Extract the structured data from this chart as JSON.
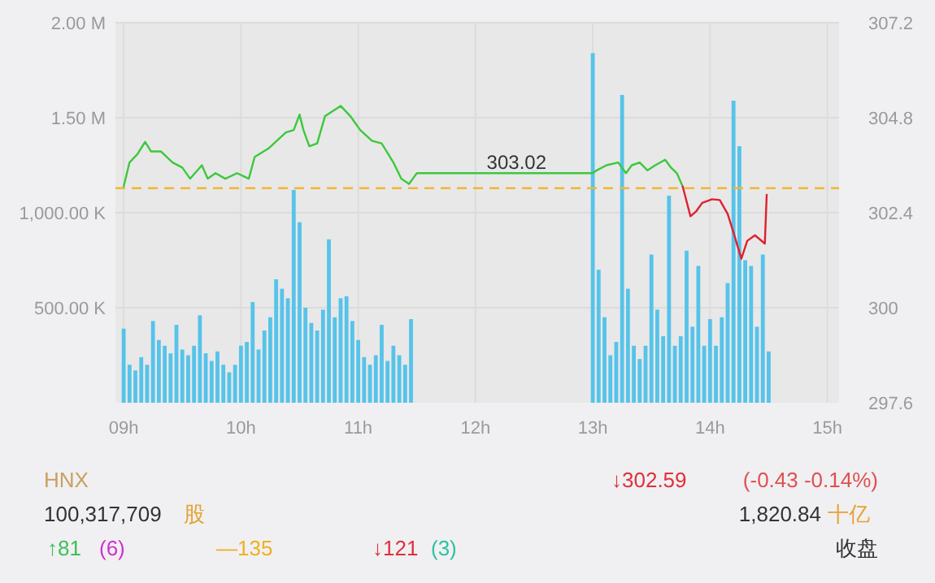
{
  "chart_data": [
    {
      "type": "bar",
      "xlim": [
        8.93,
        15.1
      ],
      "xticks": [
        {
          "value": 9,
          "label": "09h"
        },
        {
          "value": 10,
          "label": "10h"
        },
        {
          "value": 11,
          "label": "11h"
        },
        {
          "value": 12,
          "label": "12h"
        },
        {
          "value": 13,
          "label": "13h"
        },
        {
          "value": 14,
          "label": "14h"
        },
        {
          "value": 15,
          "label": "15h"
        }
      ],
      "ylim": [
        0,
        2000000
      ],
      "yticks": [
        {
          "value": 500000,
          "label": "500.00 K"
        },
        {
          "value": 1000000,
          "label": "1,000.00 K"
        },
        {
          "value": 1500000,
          "label": "1.50 M"
        },
        {
          "value": 2000000,
          "label": "2.00 M"
        }
      ],
      "y2lim": [
        297.6,
        307.2
      ],
      "y2ticks": [
        297.6,
        300,
        302.4,
        304.8,
        307.2
      ],
      "grid": true,
      "ref_lines": [
        {
          "axis": "y2",
          "value": 303.02,
          "label": "303.02",
          "color": "#f2b632",
          "line_style": "dashed"
        }
      ],
      "series": [
        {
          "type": "bar",
          "color": "#56c3ea",
          "x": [
            9,
            9.05,
            9.1,
            9.15,
            9.2,
            9.25,
            9.3,
            9.35,
            9.4,
            9.45,
            9.5,
            9.55,
            9.6,
            9.65,
            9.7,
            9.75,
            9.8,
            9.85,
            9.9,
            9.95,
            10,
            10.05,
            10.1,
            10.15,
            10.2,
            10.25,
            10.3,
            10.35,
            10.4,
            10.45,
            10.5,
            10.55,
            10.6,
            10.65,
            10.7,
            10.75,
            10.8,
            10.85,
            10.9,
            10.95,
            11,
            11.05,
            11.1,
            11.15,
            11.2,
            11.25,
            11.3,
            11.35,
            11.4,
            11.45,
            13,
            13.05,
            13.1,
            13.15,
            13.2,
            13.25,
            13.3,
            13.35,
            13.4,
            13.45,
            13.5,
            13.55,
            13.6,
            13.65,
            13.7,
            13.75,
            13.8,
            13.85,
            13.9,
            13.95,
            14,
            14.05,
            14.1,
            14.15,
            14.2,
            14.25,
            14.3,
            14.35,
            14.4,
            14.45,
            14.5
          ],
          "values": [
            390000,
            200000,
            170000,
            240000,
            200000,
            430000,
            330000,
            300000,
            260000,
            410000,
            280000,
            250000,
            300000,
            460000,
            260000,
            220000,
            270000,
            200000,
            160000,
            200000,
            300000,
            320000,
            530000,
            280000,
            380000,
            450000,
            650000,
            600000,
            550000,
            1120000,
            950000,
            500000,
            420000,
            380000,
            490000,
            860000,
            450000,
            550000,
            560000,
            430000,
            330000,
            240000,
            200000,
            250000,
            410000,
            220000,
            300000,
            250000,
            200000,
            440000,
            1840000,
            700000,
            450000,
            250000,
            320000,
            1620000,
            600000,
            300000,
            230000,
            300000,
            780000,
            490000,
            350000,
            1090000,
            300000,
            350000,
            800000,
            400000,
            720000,
            300000,
            440000,
            300000,
            450000,
            630000,
            1590000,
            1350000,
            750000,
            720000,
            400000,
            780000,
            270000
          ]
        },
        {
          "type": "line",
          "axis": "y2",
          "color": "#3cc83c",
          "x": [
            9,
            9.05,
            9.117,
            9.183,
            9.233,
            9.317,
            9.417,
            9.5,
            9.567,
            9.667,
            9.717,
            9.783,
            9.867,
            9.967,
            10.067,
            10.117,
            10.233,
            10.383,
            10.45,
            10.5,
            10.533,
            10.583,
            10.65,
            10.717,
            10.85,
            10.933,
            11.017,
            11.117,
            11.2,
            11.3,
            11.367,
            11.433,
            11.483,
            11.5,
            13,
            13.033,
            13.117,
            13.217,
            13.283,
            13.333,
            13.4,
            13.467,
            13.533,
            13.617,
            13.667,
            13.717,
            13.767
          ],
          "values": [
            303.06,
            303.67,
            303.88,
            304.19,
            303.95,
            303.95,
            303.67,
            303.54,
            303.26,
            303.6,
            303.26,
            303.4,
            303.26,
            303.4,
            303.26,
            303.81,
            304.02,
            304.43,
            304.49,
            304.88,
            304.49,
            304.08,
            304.15,
            304.84,
            305.1,
            304.84,
            304.49,
            304.22,
            304.15,
            303.67,
            303.26,
            303.13,
            303.33,
            303.4,
            303.4,
            303.47,
            303.6,
            303.67,
            303.4,
            303.6,
            303.67,
            303.47,
            303.6,
            303.74,
            303.54,
            303.4,
            303.06
          ]
        },
        {
          "type": "line",
          "axis": "y2",
          "color": "#e0202e",
          "x": [
            13.767,
            13.833,
            13.883,
            13.933,
            14.017,
            14.083,
            14.15,
            14.2,
            14.267,
            14.317,
            14.383,
            14.467,
            14.483
          ],
          "values": [
            303.06,
            302.31,
            302.44,
            302.65,
            302.74,
            302.72,
            302.37,
            301.9,
            301.24,
            301.69,
            301.83,
            301.62,
            302.85
          ]
        }
      ]
    },
    {
      "type": "other",
      "annotations": [
        "HNX",
        "↓302.59",
        "(-0.43  -0.14%)",
        "100,317,709",
        "股",
        "1,820.84",
        "十亿",
        "↑81",
        "(6)",
        "—135",
        "↓121",
        "(3)",
        "收盘"
      ]
    }
  ]
}
